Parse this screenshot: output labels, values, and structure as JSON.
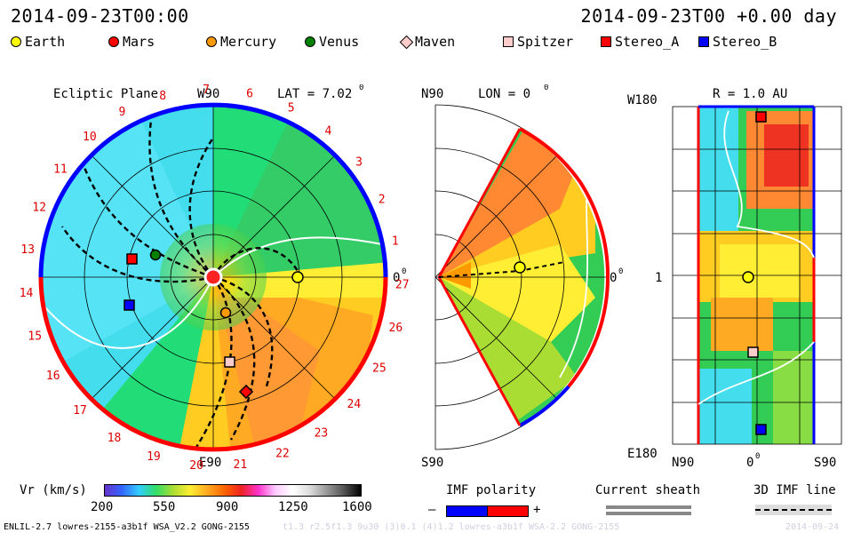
{
  "header": {
    "datetime_left": "2014-09-23T00:00",
    "datetime_right": "2014-09-23T00 +0.00 day"
  },
  "legend": [
    {
      "name": "Earth",
      "color": "#ffff00",
      "shape": "circle"
    },
    {
      "name": "Mars",
      "color": "#ff0000",
      "shape": "circle"
    },
    {
      "name": "Mercury",
      "color": "#ff9900",
      "shape": "circle"
    },
    {
      "name": "Venus",
      "color": "#008000",
      "shape": "circle"
    },
    {
      "name": "Maven",
      "color": "#ffcccc",
      "shape": "diamond"
    },
    {
      "name": "Spitzer",
      "color": "#ffcccc",
      "shape": "square"
    },
    {
      "name": "Stereo_A",
      "color": "#ff0000",
      "shape": "square"
    },
    {
      "name": "Stereo_B",
      "color": "#0000ff",
      "shape": "square"
    }
  ],
  "panels": {
    "ecliptic": {
      "title": "Ecliptic Plane",
      "lat_label": "LAT = 7.02",
      "lat_deg_sup": "0",
      "top_label": "W90",
      "bottom_label": "E90",
      "right_label": "0",
      "right_sup": "0",
      "sector_numbers": [
        "1",
        "2",
        "3",
        "4",
        "5",
        "6",
        "7",
        "8",
        "9",
        "10",
        "11",
        "12",
        "13",
        "14",
        "15",
        "16",
        "17",
        "18",
        "19",
        "20",
        "21",
        "22",
        "23",
        "24",
        "25",
        "26",
        "27"
      ]
    },
    "meridional": {
      "title": "LON = 0",
      "title_sup": "0",
      "top_label": "N90",
      "bottom_label": "S90",
      "right_label": "0",
      "right_sup": "0"
    },
    "shell": {
      "title": "R = 1.0 AU",
      "top_left_label": "W180",
      "mid_left_label": "1",
      "bottom_left_label": "E180",
      "x_labels": [
        "N90",
        "0",
        "S90"
      ],
      "x_mid_sup": "0"
    }
  },
  "colorbar": {
    "label": "Vr (km/s)",
    "ticks": [
      "200",
      "550",
      "900",
      "1250",
      "1600"
    ]
  },
  "imf_polarity": {
    "title": "IMF polarity",
    "minus": "–",
    "plus": "+",
    "neg_color": "#0000ff",
    "pos_color": "#ff0000"
  },
  "current_sheath": {
    "title": "Current sheath"
  },
  "imf_line": {
    "title": "3D IMF line"
  },
  "footer": {
    "left": "ENLIL-2.7 lowres-2155-a3b1f WSA_V2.2 GONG-2155",
    "middle": "t1.3 r2.5f1.3 9u30 (3)0.1 (4)1.2 lowres-a3b1f WSA-2.2 GONG-2155",
    "right": "2014-09-24"
  }
}
